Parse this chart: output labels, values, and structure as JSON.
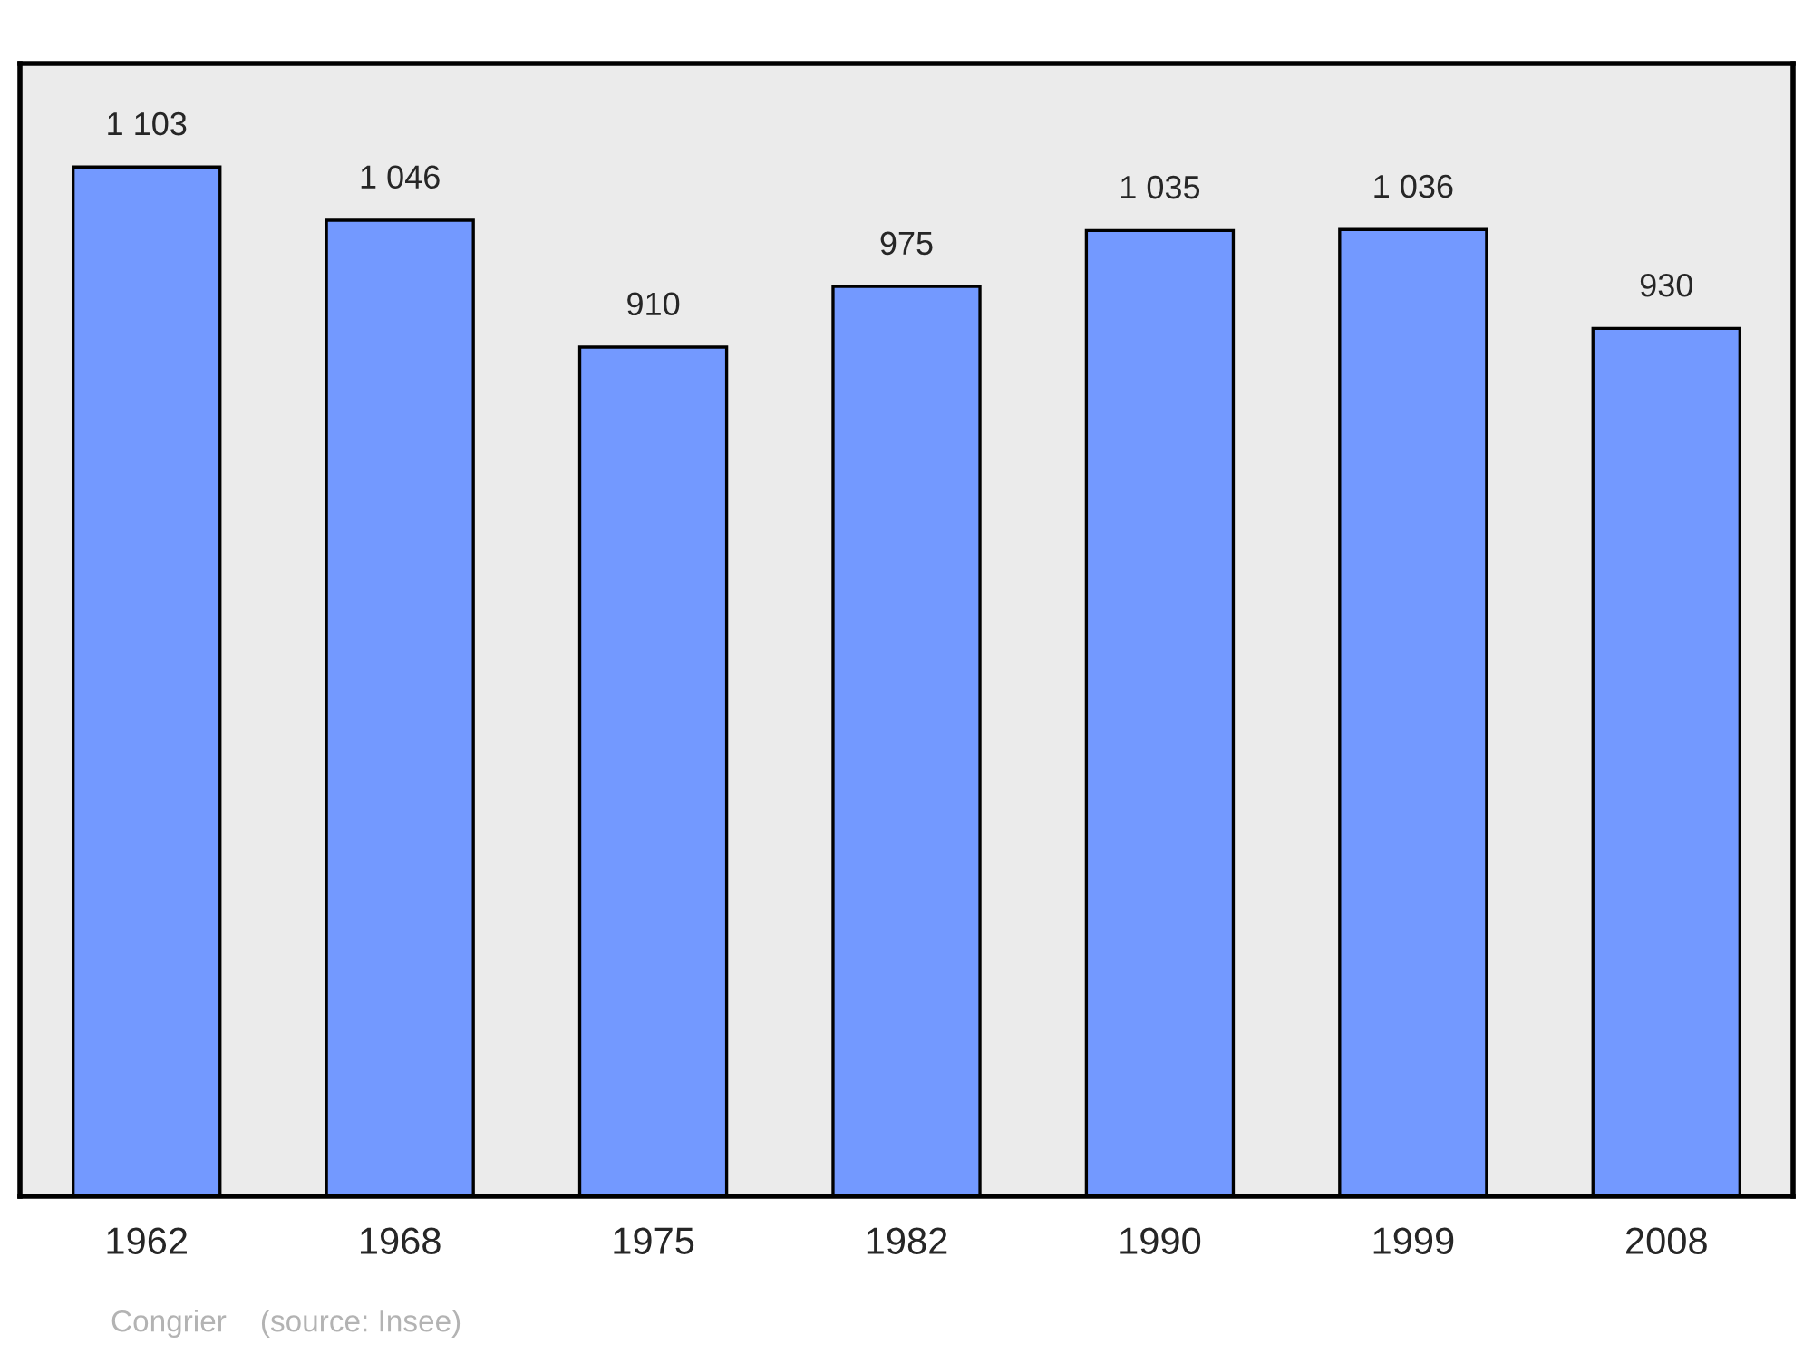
{
  "chart_data": {
    "type": "bar",
    "categories": [
      "1962",
      "1968",
      "1975",
      "1982",
      "1990",
      "1999",
      "2008"
    ],
    "values": [
      1103,
      1046,
      910,
      975,
      1035,
      1036,
      930
    ],
    "value_labels": [
      "1 103",
      "1 046",
      "910",
      "975",
      "1 035",
      "1 036",
      "930"
    ],
    "color": "#7399ff",
    "ylim": [
      0,
      1214
    ],
    "tick_labels": "x",
    "grid": false,
    "legend": false,
    "annotations": [
      "Congrier    (source: Insee)"
    ]
  }
}
